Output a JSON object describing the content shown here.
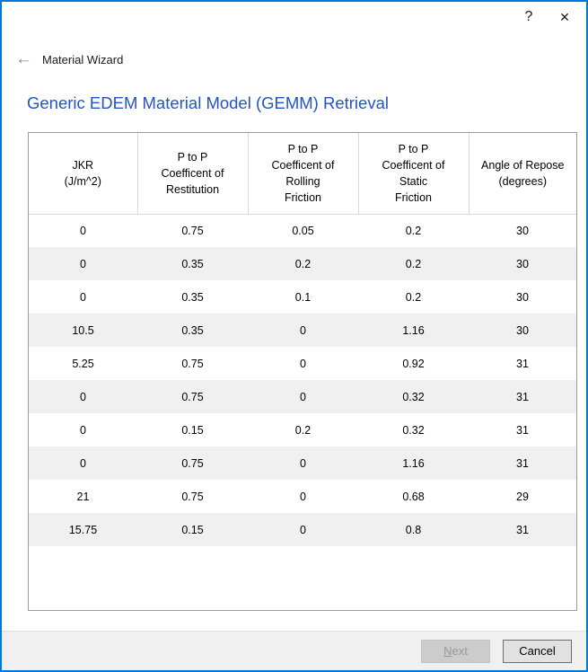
{
  "window": {
    "help": "?",
    "close": "✕"
  },
  "nav": {
    "back": "←",
    "title": "Material Wizard"
  },
  "heading": "Generic EDEM Material Model (GEMM) Retrieval",
  "table": {
    "columns": [
      "JKR\n(J/m^2)",
      "P to P\nCoefficent of\nRestitution",
      "P to P\nCoefficent of\nRolling\nFriction",
      "P to P\nCoefficent of\nStatic\nFriction",
      "Angle of Repose\n(degrees)"
    ],
    "rows": [
      [
        "0",
        "0.75",
        "0.05",
        "0.2",
        "30"
      ],
      [
        "0",
        "0.35",
        "0.2",
        "0.2",
        "30"
      ],
      [
        "0",
        "0.35",
        "0.1",
        "0.2",
        "30"
      ],
      [
        "10.5",
        "0.35",
        "0",
        "1.16",
        "30"
      ],
      [
        "5.25",
        "0.75",
        "0",
        "0.92",
        "31"
      ],
      [
        "0",
        "0.75",
        "0",
        "0.32",
        "31"
      ],
      [
        "0",
        "0.15",
        "0.2",
        "0.32",
        "31"
      ],
      [
        "0",
        "0.75",
        "0",
        "1.16",
        "31"
      ],
      [
        "21",
        "0.75",
        "0",
        "0.68",
        "29"
      ],
      [
        "15.75",
        "0.15",
        "0",
        "0.8",
        "31"
      ]
    ]
  },
  "footer": {
    "next_mnemonic": "N",
    "next_rest": "ext",
    "cancel": "Cancel"
  },
  "colors": {
    "window_border": "#0078d7",
    "heading": "#2353c4",
    "row_stripe": "#f0f0f0",
    "table_border": "#9b9b9b",
    "footer_bg": "#f0f0f0"
  }
}
